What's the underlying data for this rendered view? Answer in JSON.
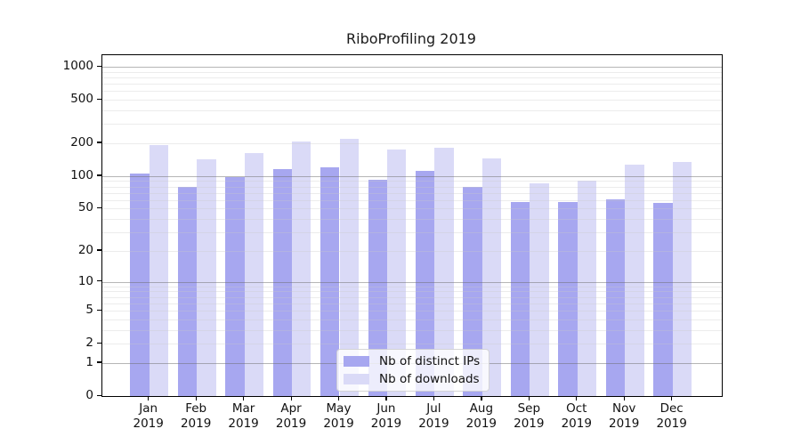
{
  "figure": {
    "background": "#ffffff",
    "axis_color": "#000000",
    "text_color": "#111111"
  },
  "chart_data": {
    "type": "bar",
    "title": "RiboProfiling 2019",
    "x_year": "2019",
    "categories": [
      "Jan",
      "Feb",
      "Mar",
      "Apr",
      "May",
      "Jun",
      "Jul",
      "Aug",
      "Sep",
      "Oct",
      "Nov",
      "Dec"
    ],
    "series": [
      {
        "name": "Nb of distinct IPs",
        "color": "#a7a7f0",
        "values": [
          106,
          79,
          98,
          117,
          121,
          93,
          111,
          79,
          58,
          58,
          61,
          57
        ]
      },
      {
        "name": "Nb of downloads",
        "color": "#dadaf7",
        "values": [
          191,
          143,
          164,
          209,
          221,
          175,
          181,
          145,
          85,
          91,
          128,
          135
        ]
      }
    ],
    "xlabel": "",
    "ylabel": "",
    "y_axis": {
      "scale": "symlog (position ~ ln(1+v))",
      "ticks": [
        0,
        1,
        2,
        5,
        10,
        20,
        50,
        100,
        200,
        500,
        1000
      ],
      "range_top": 1276
    },
    "grid": {
      "enabled": true,
      "drawn_above_bars": true,
      "major_values": [
        1,
        10,
        100,
        1000
      ],
      "minor_values": [
        2,
        3,
        4,
        5,
        6,
        7,
        8,
        9,
        20,
        30,
        40,
        50,
        60,
        70,
        80,
        90,
        200,
        300,
        400,
        500,
        600,
        700,
        800,
        900
      ],
      "major_color": "#b0b0b0",
      "minor_color": "#ececec"
    },
    "legend": {
      "position": "lower center",
      "entries": [
        "Nb of distinct IPs",
        "Nb of downloads"
      ]
    }
  }
}
